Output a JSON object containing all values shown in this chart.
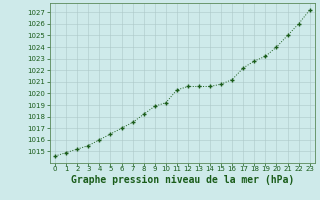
{
  "x": [
    0,
    1,
    2,
    3,
    4,
    5,
    6,
    7,
    8,
    9,
    10,
    11,
    12,
    13,
    14,
    15,
    16,
    17,
    18,
    19,
    20,
    21,
    22,
    23
  ],
  "y": [
    1014.6,
    1014.9,
    1015.2,
    1015.5,
    1016.0,
    1016.5,
    1017.0,
    1017.5,
    1018.2,
    1018.9,
    1019.2,
    1020.3,
    1020.6,
    1020.6,
    1020.6,
    1020.8,
    1021.2,
    1022.2,
    1022.8,
    1023.2,
    1024.0,
    1025.0,
    1026.0,
    1027.2
  ],
  "line_color": "#1a5c1a",
  "marker": "+",
  "marker_size": 3.5,
  "marker_color": "#1a5c1a",
  "bg_color": "#ceeaea",
  "grid_color": "#adc8c8",
  "tick_color": "#1a5c1a",
  "xlabel": "Graphe pression niveau de la mer (hPa)",
  "xlabel_color": "#1a5c1a",
  "xlabel_fontsize": 7,
  "ylim": [
    1014.0,
    1027.8
  ],
  "yticks": [
    1015,
    1016,
    1017,
    1018,
    1019,
    1020,
    1021,
    1022,
    1023,
    1024,
    1025,
    1026,
    1027
  ],
  "xticks": [
    0,
    1,
    2,
    3,
    4,
    5,
    6,
    7,
    8,
    9,
    10,
    11,
    12,
    13,
    14,
    15,
    16,
    17,
    18,
    19,
    20,
    21,
    22,
    23
  ],
  "spine_color": "#5a8a5a"
}
